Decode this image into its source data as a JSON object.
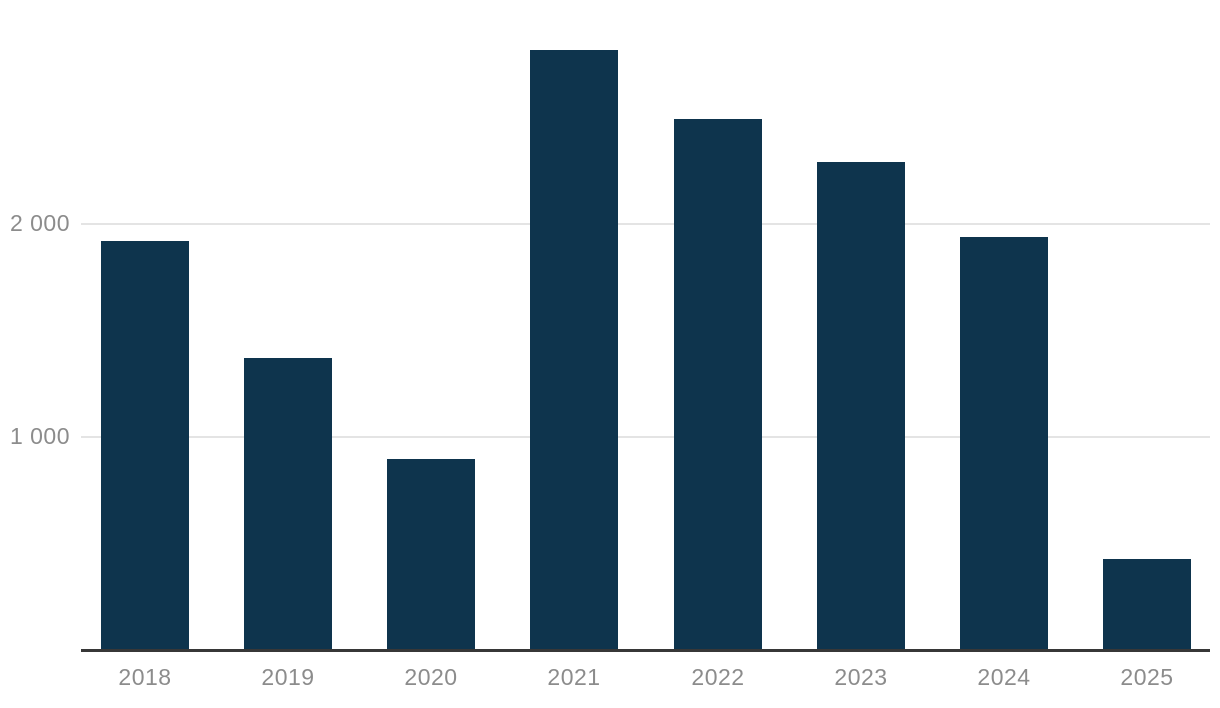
{
  "chart_data": {
    "type": "bar",
    "categories": [
      "2018",
      "2019",
      "2020",
      "2021",
      "2022",
      "2023",
      "2024",
      "2025"
    ],
    "values": [
      1920,
      1370,
      895,
      2820,
      2495,
      2290,
      1940,
      425
    ],
    "title": "",
    "xlabel": "",
    "ylabel": "",
    "ylim": [
      0,
      3050
    ],
    "yticks": [
      {
        "value": 1000,
        "label": "1 000"
      },
      {
        "value": 2000,
        "label": "2 000"
      }
    ],
    "grid": true,
    "legend": false
  },
  "style": {
    "bar_color": "#0e344d",
    "grid_color": "#e4e4e4",
    "axis_color": "#373737",
    "label_color": "#8c8c8c",
    "background_color": "#ffffff"
  }
}
